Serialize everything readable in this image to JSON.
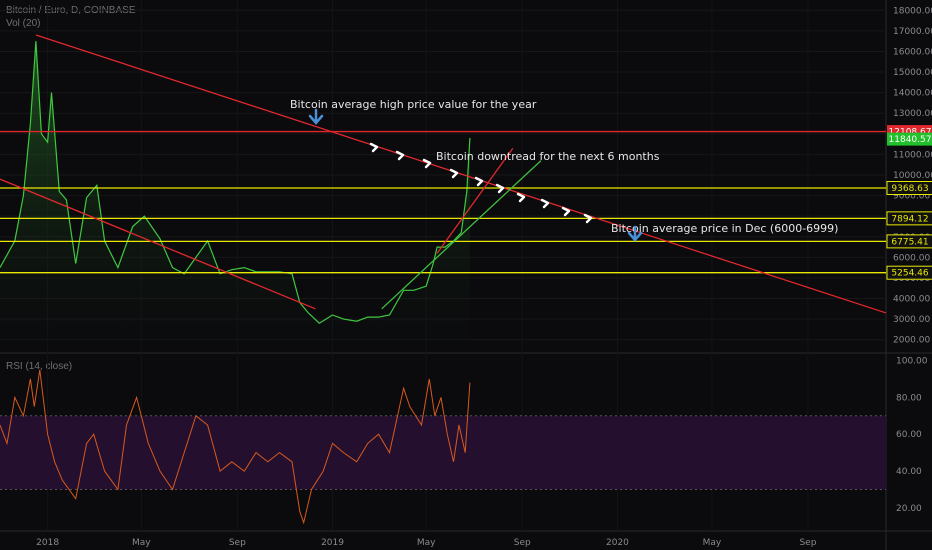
{
  "header": {
    "symbol": "Bitcoin / Euro, D, COINBASE",
    "volume": "Vol (20)",
    "rsi": "RSI (14, close)"
  },
  "colors": {
    "background": "#0b0b0d",
    "price_line": "#3fc93f",
    "red_line": "#e0282d",
    "green_line": "#3fbf3f",
    "yellow_line": "#e8e800",
    "rsi_line": "#d65a1f",
    "rsi_band": "#24102e",
    "label_blue": "#4a90d9"
  },
  "annotations": {
    "high": "Bitcoin average high price value for the year",
    "downtrend": "Bitcoin downtread for the next 6 months",
    "december": "Bitcoin average price in Dec (6000-6999)"
  },
  "chart_data": [
    {
      "type": "line",
      "title": "Bitcoin / Euro, D, COINBASE",
      "y_axis": {
        "range": [
          1500,
          18500
        ],
        "ticks": [
          "18000.00",
          "17000.00",
          "16000.00",
          "15000.00",
          "14000.00",
          "13000.00",
          "12000.00",
          "11000.00",
          "10000.00",
          "9000.00",
          "8000.00",
          "7000.00",
          "6000.00",
          "5000.00",
          "4000.00",
          "3000.00",
          "2000.00"
        ]
      },
      "x_axis": {
        "ticks": [
          "2018",
          "May",
          "Sep",
          "2019",
          "May",
          "Sep",
          "2020",
          "May",
          "Sep"
        ],
        "tick_dates": [
          "2018-01-01",
          "2018-05-01",
          "2018-09-01",
          "2019-01-01",
          "2019-05-01",
          "2019-09-01",
          "2020-01-01",
          "2020-05-01",
          "2020-09-01"
        ],
        "range": [
          "2017-11-01",
          "2020-12-10"
        ]
      },
      "series": [
        {
          "x": [
            "2017-11-01",
            "2017-11-20",
            "2017-12-01",
            "2017-12-10",
            "2017-12-17",
            "2017-12-24",
            "2018-01-01",
            "2018-01-06",
            "2018-01-16",
            "2018-01-25",
            "2018-02-06",
            "2018-02-20",
            "2018-03-05",
            "2018-03-15",
            "2018-04-01",
            "2018-04-20",
            "2018-05-05",
            "2018-05-25",
            "2018-06-10",
            "2018-06-25",
            "2018-07-10",
            "2018-07-25",
            "2018-08-10",
            "2018-08-25",
            "2018-09-10",
            "2018-09-25",
            "2018-10-10",
            "2018-10-25",
            "2018-11-10",
            "2018-11-20",
            "2018-12-01",
            "2018-12-15",
            "2019-01-01",
            "2019-01-15",
            "2019-02-01",
            "2019-02-15",
            "2019-03-01",
            "2019-03-15",
            "2019-04-02",
            "2019-04-15",
            "2019-05-01",
            "2019-05-10",
            "2019-05-15",
            "2019-05-25",
            "2019-06-05",
            "2019-06-15",
            "2019-06-22",
            "2019-06-26"
          ],
          "y": [
            5500,
            6800,
            9000,
            12500,
            16500,
            12000,
            11600,
            14000,
            9200,
            8800,
            5700,
            8900,
            9500,
            6800,
            5500,
            7500,
            8000,
            6900,
            5500,
            5200,
            6000,
            6800,
            5200,
            5400,
            5500,
            5300,
            5300,
            5300,
            5200,
            3800,
            3300,
            2800,
            3200,
            3000,
            2900,
            3100,
            3100,
            3200,
            4400,
            4400,
            4600,
            5700,
            6500,
            6500,
            6800,
            7200,
            9200,
            11800
          ]
        }
      ],
      "horizontal_levels": [
        {
          "value": 12108.67,
          "label": "12108.67",
          "color": "#e0282d"
        },
        {
          "value": 11840.57,
          "label": "11840.57",
          "color": "#3fc93f"
        },
        {
          "value": 9368.63,
          "label": "9368.63",
          "color": "#e8e800"
        },
        {
          "value": 7894.12,
          "label": "7894.12",
          "color": "#e8e800"
        },
        {
          "value": 6775.41,
          "label": "6775.41",
          "color": "#e8e800"
        },
        {
          "value": 5254.46,
          "label": "5254.46",
          "color": "#e8e800"
        }
      ],
      "trendlines": [
        {
          "color": "#e0282d",
          "from": [
            "2017-11-01",
            9800
          ],
          "to": [
            "2018-12-10",
            3500
          ]
        },
        {
          "color": "#e0282d",
          "from": [
            "2017-12-17",
            16800
          ],
          "to": [
            "2020-12-10",
            3300
          ]
        },
        {
          "color": "#e0282d",
          "from": [
            "2019-05-15",
            6200
          ],
          "to": [
            "2019-08-20",
            11300
          ]
        },
        {
          "color": "#3fbf3f",
          "from": [
            "2019-03-05",
            3500
          ],
          "to": [
            "2019-09-25",
            10700
          ]
        }
      ]
    },
    {
      "type": "line",
      "title": "RSI (14, close)",
      "y_axis": {
        "range": [
          8,
          103
        ],
        "ticks": [
          "100.00",
          "80.00",
          "60.00",
          "40.00",
          "20.00"
        ],
        "band": [
          30,
          70
        ]
      },
      "series": [
        {
          "x": [
            "2017-11-01",
            "2017-11-10",
            "2017-11-20",
            "2017-12-01",
            "2017-12-10",
            "2017-12-15",
            "2017-12-22",
            "2018-01-01",
            "2018-01-10",
            "2018-01-20",
            "2018-02-06",
            "2018-02-20",
            "2018-03-01",
            "2018-03-15",
            "2018-04-01",
            "2018-04-12",
            "2018-04-25",
            "2018-05-10",
            "2018-05-25",
            "2018-06-10",
            "2018-06-25",
            "2018-07-10",
            "2018-07-25",
            "2018-08-10",
            "2018-08-25",
            "2018-09-10",
            "2018-09-25",
            "2018-10-10",
            "2018-10-25",
            "2018-11-10",
            "2018-11-20",
            "2018-11-25",
            "2018-12-05",
            "2018-12-20",
            "2019-01-01",
            "2019-01-15",
            "2019-02-01",
            "2019-02-15",
            "2019-03-01",
            "2019-03-15",
            "2019-04-02",
            "2019-04-10",
            "2019-04-25",
            "2019-05-05",
            "2019-05-12",
            "2019-05-20",
            "2019-05-28",
            "2019-06-05",
            "2019-06-12",
            "2019-06-20",
            "2019-06-26"
          ],
          "y": [
            65,
            55,
            80,
            70,
            90,
            75,
            95,
            60,
            45,
            35,
            25,
            55,
            60,
            40,
            30,
            65,
            80,
            55,
            40,
            30,
            50,
            70,
            65,
            40,
            45,
            40,
            50,
            45,
            50,
            45,
            18,
            12,
            30,
            40,
            55,
            50,
            45,
            55,
            60,
            50,
            85,
            75,
            65,
            90,
            70,
            80,
            60,
            45,
            65,
            50,
            88
          ]
        }
      ]
    }
  ]
}
